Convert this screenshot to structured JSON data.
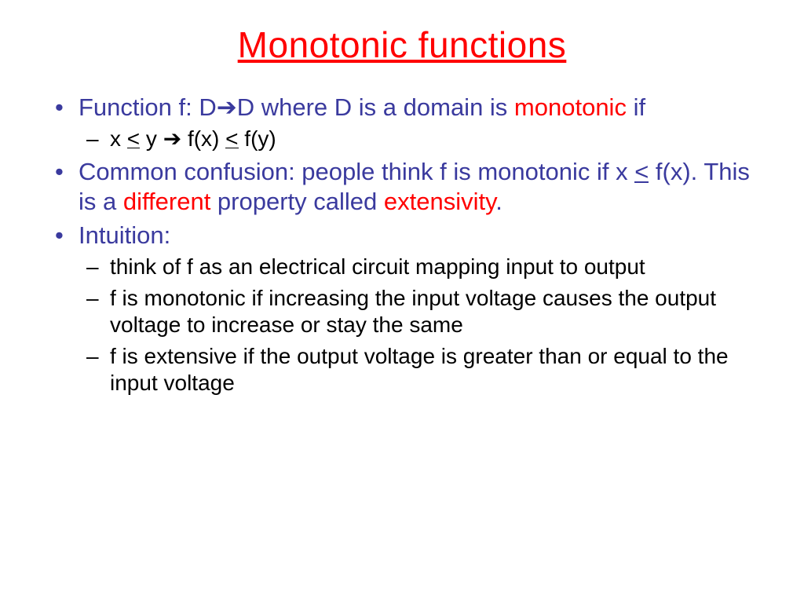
{
  "colors": {
    "title": "#ff0000",
    "body_accent": "#3a3a9e",
    "highlight": "#ff0000",
    "subtext": "#000000",
    "background": "#ffffff"
  },
  "typography": {
    "title_fontsize": 46,
    "body_fontsize": 31,
    "sub_fontsize": 28,
    "font_family": "Arial"
  },
  "title": "Monotonic functions",
  "bullets": {
    "b1": {
      "pre": "Function f: D",
      "arrow": "➔",
      "mid": "D where D is a domain is ",
      "hl": "monotonic",
      "post": " if"
    },
    "b1_sub1": {
      "t1": "x ",
      "leq1": "<",
      "t2": " y ",
      "arrow": "➔",
      "t3": " f(x) ",
      "leq2": "<",
      "t4": " f(y)"
    },
    "b2": {
      "t1": "Common confusion: people think f is monotonic if x ",
      "leq": "<",
      "t2": " f(x). This is a ",
      "hl1": "different",
      "t3": " property called ",
      "hl2": "extensivity",
      "t4": "."
    },
    "b3": {
      "t": "Intuition:"
    },
    "b3_sub1": "think of f as an electrical circuit mapping input to output",
    "b3_sub2": "f is monotonic if increasing the input voltage causes the output voltage to increase or stay the same",
    "b3_sub3": "f is extensive if the output voltage is greater than or equal to the input voltage"
  }
}
